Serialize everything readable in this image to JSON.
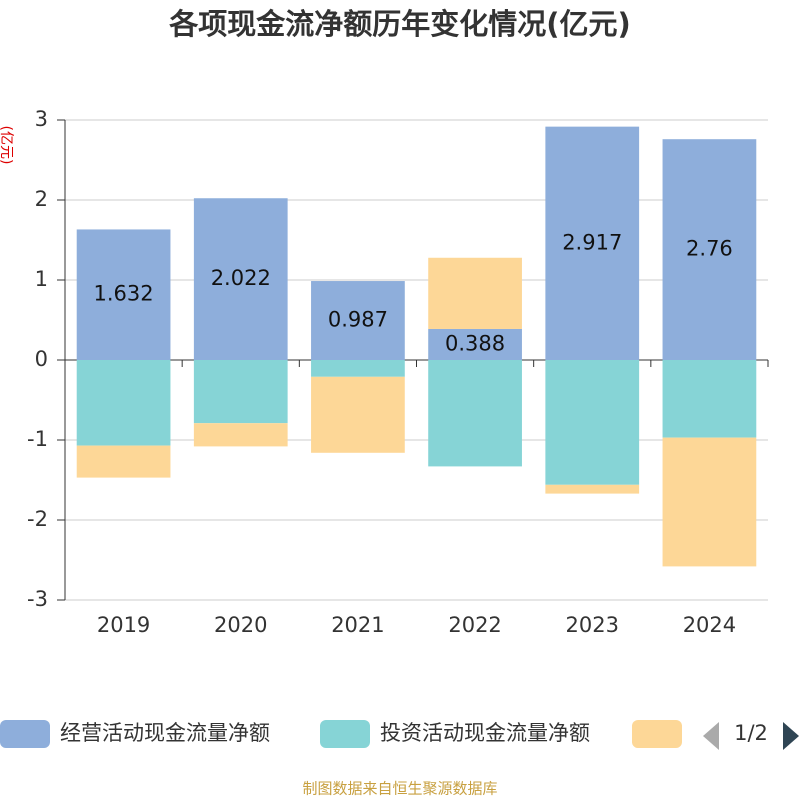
{
  "chart_data": {
    "type": "stacked_bar",
    "title": "各项现金流净额历年变化情况(亿元)",
    "ylabel": "(亿元)",
    "categories": [
      "2019",
      "2020",
      "2021",
      "2022",
      "2023",
      "2024"
    ],
    "series": [
      {
        "name": "经营活动现金流量净额",
        "color": "#8eaedb",
        "values": [
          1.632,
          2.022,
          0.987,
          0.388,
          2.917,
          2.76
        ],
        "labels": true
      },
      {
        "name": "投资活动现金流量净额",
        "color": "#86d4d6",
        "values": [
          -1.07,
          -0.79,
          -0.21,
          -1.33,
          -1.56,
          -0.97
        ]
      },
      {
        "color": "#fdd797",
        "values": [
          -0.4,
          -0.29,
          -0.95,
          0.89,
          -0.11,
          -1.61
        ]
      }
    ],
    "ylim": [
      -3,
      3
    ],
    "yticks": [
      -3,
      -2,
      -1,
      0,
      1,
      2,
      3
    ],
    "grid": true,
    "legend_page": "1/2",
    "source": "制图数据来自恒生聚源数据库"
  }
}
